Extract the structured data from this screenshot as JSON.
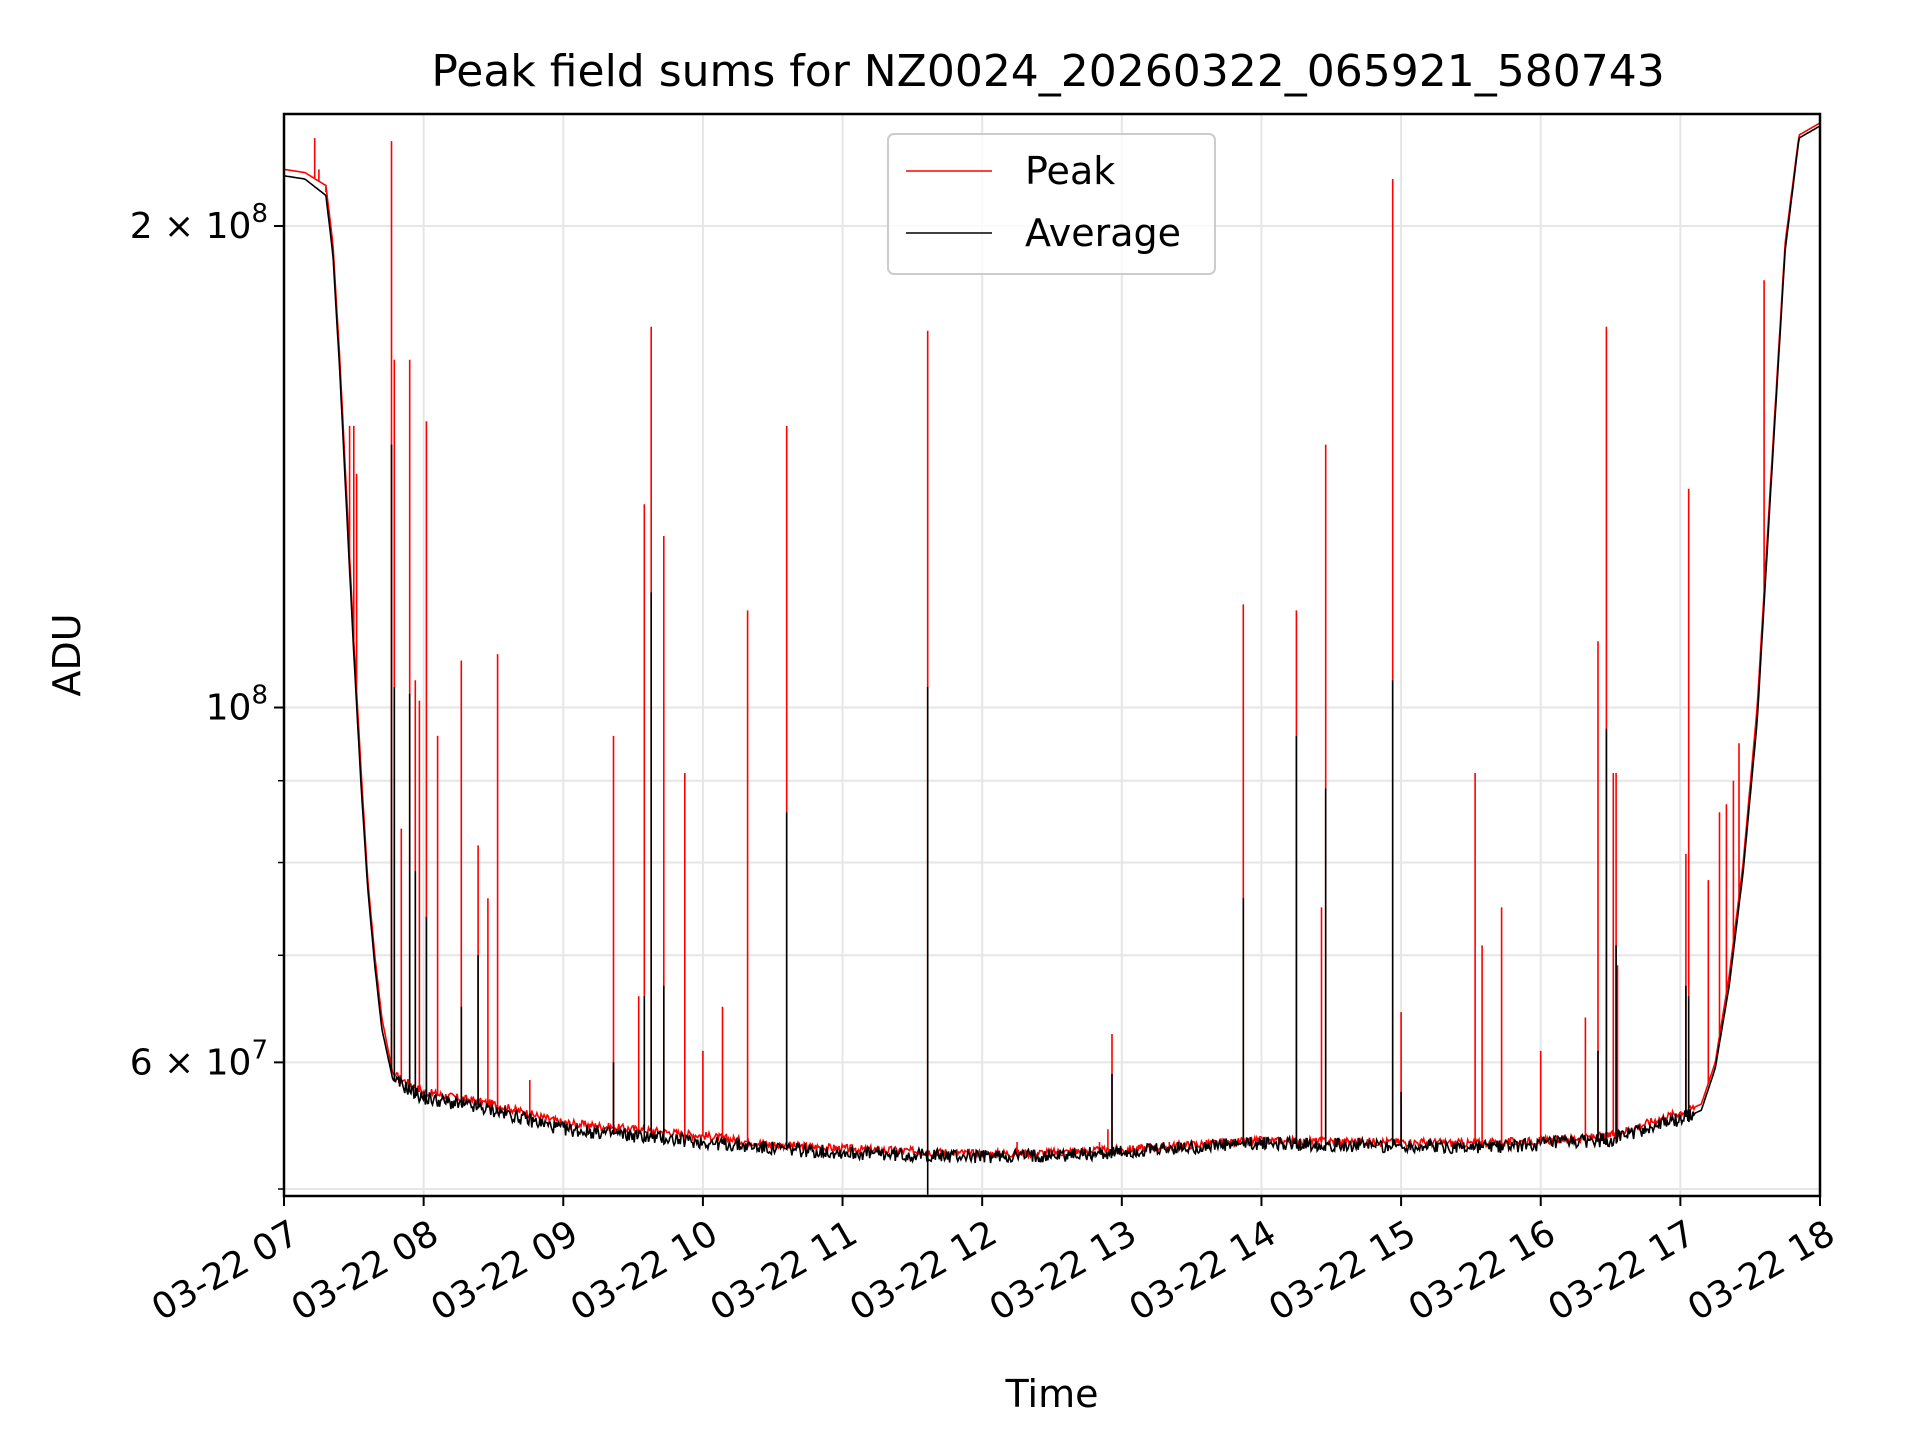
{
  "chart_data": {
    "type": "line",
    "title": "Peak field sums for NZ0024_20260322_065921_580743",
    "xlabel": "Time",
    "ylabel": "ADU",
    "yscale": "log",
    "ylim": [
      49500000,
      235000000
    ],
    "xlim": [
      7.0,
      18.0
    ],
    "grid": true,
    "legend_position": "upper center",
    "colors": {
      "peak": "#ff0000",
      "average": "#000000"
    },
    "x_ticks": [
      {
        "value": 7,
        "label": "03-22 07"
      },
      {
        "value": 8,
        "label": "03-22 08"
      },
      {
        "value": 9,
        "label": "03-22 09"
      },
      {
        "value": 10,
        "label": "03-22 10"
      },
      {
        "value": 11,
        "label": "03-22 11"
      },
      {
        "value": 12,
        "label": "03-22 12"
      },
      {
        "value": 13,
        "label": "03-22 13"
      },
      {
        "value": 14,
        "label": "03-22 14"
      },
      {
        "value": 15,
        "label": "03-22 15"
      },
      {
        "value": 16,
        "label": "03-22 16"
      },
      {
        "value": 17,
        "label": "03-22 17"
      },
      {
        "value": 18,
        "label": "03-22 18"
      }
    ],
    "y_major_ticks": [
      {
        "value": 60000000,
        "mantissa": "6",
        "exponent": "7"
      },
      {
        "value": 100000000,
        "mantissa": "",
        "exponent": "8"
      },
      {
        "value": 200000000,
        "mantissa": "2",
        "exponent": "8"
      }
    ],
    "y_minor_ticks": [
      50000000,
      70000000,
      80000000,
      90000000,
      300000000
    ],
    "series": [
      {
        "name": "Peak",
        "color": "#ff0000",
        "baseline": [
          [
            7.0,
            217000000
          ],
          [
            7.15,
            216000000
          ],
          [
            7.3,
            212000000
          ],
          [
            7.35,
            195000000
          ],
          [
            7.4,
            165000000
          ],
          [
            7.45,
            135000000
          ],
          [
            7.5,
            110000000
          ],
          [
            7.55,
            92000000
          ],
          [
            7.6,
            78000000
          ],
          [
            7.65,
            70000000
          ],
          [
            7.7,
            64000000
          ],
          [
            7.78,
            59000000
          ],
          [
            8.0,
            57500000
          ],
          [
            8.5,
            56500000
          ],
          [
            9.0,
            55000000
          ],
          [
            9.5,
            54500000
          ],
          [
            10.0,
            54000000
          ],
          [
            10.5,
            53300000
          ],
          [
            11.0,
            53000000
          ],
          [
            11.5,
            52800000
          ],
          [
            12.0,
            52600000
          ],
          [
            12.5,
            52700000
          ],
          [
            13.0,
            52900000
          ],
          [
            13.5,
            53300000
          ],
          [
            14.0,
            53600000
          ],
          [
            15.0,
            53500000
          ],
          [
            15.5,
            53400000
          ],
          [
            16.0,
            53600000
          ],
          [
            16.5,
            54000000
          ],
          [
            16.9,
            55500000
          ],
          [
            17.05,
            56000000
          ],
          [
            17.15,
            56500000
          ],
          [
            17.25,
            60000000
          ],
          [
            17.35,
            68000000
          ],
          [
            17.45,
            80000000
          ],
          [
            17.55,
            100000000
          ],
          [
            17.65,
            140000000
          ],
          [
            17.75,
            195000000
          ],
          [
            17.85,
            228000000
          ],
          [
            18.0,
            232000000
          ]
        ],
        "spikes": [
          [
            7.22,
            227000000
          ],
          [
            7.25,
            217000000
          ],
          [
            7.3,
            210000000
          ],
          [
            7.47,
            150000000
          ],
          [
            7.5,
            150000000
          ],
          [
            7.52,
            140000000
          ],
          [
            7.77,
            226000000
          ],
          [
            7.79,
            165000000
          ],
          [
            7.84,
            84000000
          ],
          [
            7.9,
            165000000
          ],
          [
            7.94,
            104000000
          ],
          [
            7.97,
            101000000
          ],
          [
            8.02,
            151000000
          ],
          [
            8.1,
            96000000
          ],
          [
            8.27,
            107000000
          ],
          [
            8.39,
            82000000
          ],
          [
            8.46,
            76000000
          ],
          [
            8.53,
            108000000
          ],
          [
            8.76,
            58500000
          ],
          [
            9.36,
            96000000
          ],
          [
            9.54,
            66000000
          ],
          [
            9.58,
            134000000
          ],
          [
            9.63,
            173000000
          ],
          [
            9.72,
            128000000
          ],
          [
            9.87,
            91000000
          ],
          [
            10.0,
            61000000
          ],
          [
            10.14,
            65000000
          ],
          [
            10.32,
            115000000
          ],
          [
            10.6,
            150000000
          ],
          [
            11.61,
            172000000
          ],
          [
            12.25,
            53500000
          ],
          [
            12.84,
            53500000
          ],
          [
            12.9,
            54500000
          ],
          [
            12.93,
            62500000
          ],
          [
            13.34,
            53500000
          ],
          [
            13.87,
            116000000
          ],
          [
            14.25,
            115000000
          ],
          [
            14.43,
            75000000
          ],
          [
            14.46,
            146000000
          ],
          [
            14.94,
            214000000
          ],
          [
            15.0,
            64500000
          ],
          [
            15.53,
            91000000
          ],
          [
            15.58,
            71000000
          ],
          [
            15.72,
            75000000
          ],
          [
            16.0,
            61000000
          ],
          [
            16.32,
            64000000
          ],
          [
            16.41,
            110000000
          ],
          [
            16.47,
            173000000
          ],
          [
            16.52,
            91000000
          ],
          [
            16.54,
            91000000
          ],
          [
            16.55,
            69000000
          ],
          [
            17.04,
            81000000
          ],
          [
            17.06,
            137000000
          ],
          [
            17.2,
            78000000
          ],
          [
            17.28,
            86000000
          ],
          [
            17.33,
            87000000
          ],
          [
            17.38,
            90000000
          ],
          [
            17.42,
            95000000
          ],
          [
            17.6,
            185000000
          ]
        ]
      },
      {
        "name": "Average",
        "color": "#000000",
        "baseline": [
          [
            7.0,
            215000000
          ],
          [
            7.15,
            214000000
          ],
          [
            7.3,
            209000000
          ],
          [
            7.35,
            192000000
          ],
          [
            7.4,
            162000000
          ],
          [
            7.45,
            132000000
          ],
          [
            7.5,
            108000000
          ],
          [
            7.55,
            90000000
          ],
          [
            7.6,
            77000000
          ],
          [
            7.65,
            69000000
          ],
          [
            7.7,
            63000000
          ],
          [
            7.78,
            58500000
          ],
          [
            8.0,
            57000000
          ],
          [
            8.5,
            56000000
          ],
          [
            9.0,
            54500000
          ],
          [
            9.5,
            54000000
          ],
          [
            10.0,
            53500000
          ],
          [
            10.5,
            53000000
          ],
          [
            11.0,
            52700000
          ],
          [
            11.5,
            52500000
          ],
          [
            12.0,
            52400000
          ],
          [
            12.5,
            52500000
          ],
          [
            13.0,
            52700000
          ],
          [
            13.5,
            53100000
          ],
          [
            14.0,
            53400000
          ],
          [
            15.0,
            53200000
          ],
          [
            15.5,
            53100000
          ],
          [
            16.0,
            53300000
          ],
          [
            16.5,
            53700000
          ],
          [
            16.9,
            55000000
          ],
          [
            17.05,
            55500000
          ],
          [
            17.15,
            56000000
          ],
          [
            17.25,
            59500000
          ],
          [
            17.35,
            67000000
          ],
          [
            17.45,
            79000000
          ],
          [
            17.55,
            98000000
          ],
          [
            17.65,
            138000000
          ],
          [
            17.75,
            193000000
          ],
          [
            17.85,
            227000000
          ],
          [
            18.0,
            231000000
          ]
        ],
        "spikes": [
          [
            7.77,
            146000000
          ],
          [
            7.79,
            103000000
          ],
          [
            7.9,
            102000000
          ],
          [
            7.94,
            79000000
          ],
          [
            8.02,
            74000000
          ],
          [
            8.27,
            65000000
          ],
          [
            8.39,
            70000000
          ],
          [
            9.36,
            60000000
          ],
          [
            9.58,
            66000000
          ],
          [
            9.63,
            118000000
          ],
          [
            9.72,
            67000000
          ],
          [
            10.6,
            86000000
          ],
          [
            11.61,
            103000000
          ],
          [
            12.93,
            59000000
          ],
          [
            13.87,
            76000000
          ],
          [
            14.25,
            96000000
          ],
          [
            14.46,
            89000000
          ],
          [
            14.94,
            104000000
          ],
          [
            15.0,
            57500000
          ],
          [
            16.41,
            61000000
          ],
          [
            16.47,
            97000000
          ],
          [
            16.54,
            71000000
          ],
          [
            17.04,
            67000000
          ],
          [
            17.06,
            66000000
          ],
          [
            11.61,
            49600000
          ]
        ]
      }
    ]
  }
}
